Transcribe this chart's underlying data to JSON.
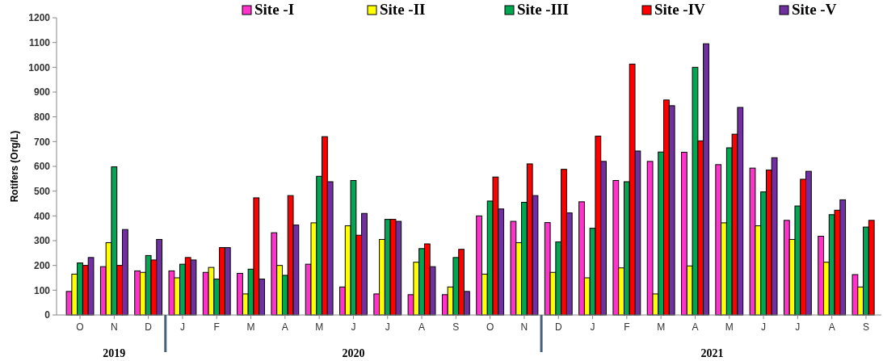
{
  "chart_data": {
    "type": "bar",
    "ylabel": "Rotifers (Org/L)",
    "categories": [
      "O",
      "N",
      "D",
      "J",
      "F",
      "M",
      "A",
      "M",
      "J",
      "J",
      "A",
      "S",
      "O",
      "N",
      "D",
      "J",
      "F",
      "M",
      "A",
      "M",
      "J",
      "J",
      "A",
      "S"
    ],
    "series": [
      {
        "name": "Site -I",
        "color": "#ff33cc",
        "values": [
          95,
          195,
          178,
          178,
          172,
          168,
          332,
          205,
          113,
          85,
          82,
          82,
          400,
          378,
          373,
          457,
          543,
          620,
          657,
          607,
          593,
          382,
          318,
          163
        ]
      },
      {
        "name": "Site -II",
        "color": "#ffff00",
        "values": [
          165,
          292,
          172,
          150,
          192,
          85,
          200,
          372,
          360,
          305,
          213,
          113,
          165,
          292,
          172,
          150,
          190,
          85,
          198,
          372,
          360,
          305,
          213,
          113
        ]
      },
      {
        "name": "Site -III",
        "color": "#00a651",
        "values": [
          210,
          598,
          240,
          205,
          145,
          185,
          160,
          560,
          543,
          386,
          268,
          232,
          460,
          455,
          295,
          350,
          538,
          658,
          1000,
          675,
          497,
          440,
          405,
          355
        ]
      },
      {
        "name": "Site -IV",
        "color": "#ff0000",
        "values": [
          200,
          200,
          222,
          232,
          272,
          473,
          482,
          720,
          322,
          386,
          287,
          265,
          557,
          610,
          588,
          722,
          1013,
          868,
          703,
          730,
          585,
          548,
          423,
          382
        ]
      },
      {
        "name": "Site -V",
        "color": "#7030a0",
        "values": [
          232,
          345,
          305,
          222,
          272,
          145,
          363,
          538,
          410,
          378,
          195,
          95,
          428,
          482,
          412,
          620,
          662,
          845,
          1095,
          838,
          635,
          580,
          465,
          null
        ]
      }
    ],
    "ylim": [
      0,
      1200
    ],
    "yticks": [
      0,
      100,
      200,
      300,
      400,
      500,
      600,
      700,
      800,
      900,
      1000,
      1100,
      1200
    ],
    "legend": "top",
    "annotations": [
      "2019",
      "2020",
      "2021"
    ]
  }
}
